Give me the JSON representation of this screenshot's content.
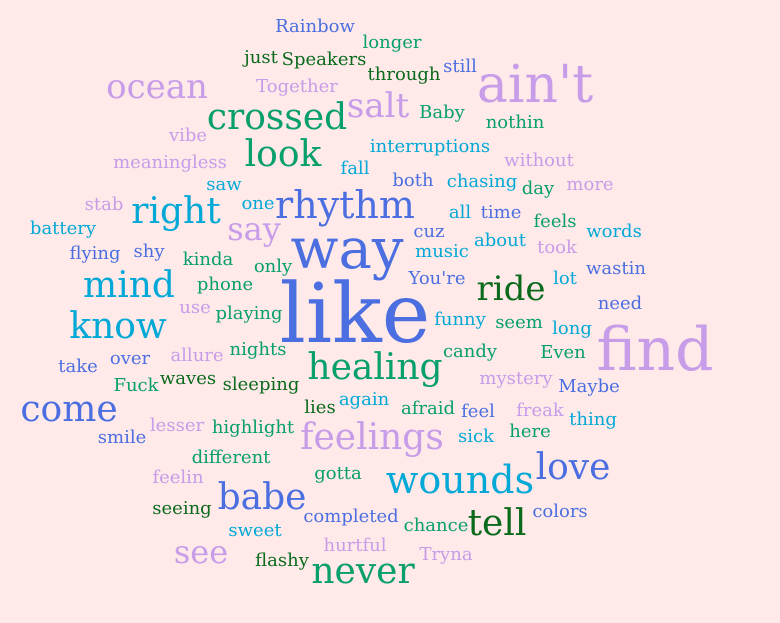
{
  "colors": {
    "background": "#ffe9e9",
    "palette": [
      "#4b6fe0",
      "#c79ce8",
      "#079f6c",
      "#03a9d6",
      "#0a6a1c"
    ]
  },
  "words": [
    {
      "text": "like",
      "color": "#4b6fe0"
    },
    {
      "text": "way",
      "color": "#4b6fe0"
    },
    {
      "text": "find",
      "color": "#c79ce8"
    },
    {
      "text": "ain't",
      "color": "#c79ce8"
    },
    {
      "text": "rhythm",
      "color": "#4b6fe0"
    },
    {
      "text": "crossed",
      "color": "#079f6c"
    },
    {
      "text": "look",
      "color": "#079f6c"
    },
    {
      "text": "healing",
      "color": "#079f6c"
    },
    {
      "text": "feelings",
      "color": "#c79ce8"
    },
    {
      "text": "wounds",
      "color": "#03a9d6"
    },
    {
      "text": "ocean",
      "color": "#c79ce8"
    },
    {
      "text": "right",
      "color": "#03a9d6"
    },
    {
      "text": "mind",
      "color": "#03a9d6"
    },
    {
      "text": "know",
      "color": "#03a9d6"
    },
    {
      "text": "come",
      "color": "#4b6fe0"
    },
    {
      "text": "babe",
      "color": "#4b6fe0"
    },
    {
      "text": "love",
      "color": "#4b6fe0"
    },
    {
      "text": "tell",
      "color": "#0a6a1c"
    },
    {
      "text": "never",
      "color": "#079f6c"
    },
    {
      "text": "see",
      "color": "#c79ce8"
    },
    {
      "text": "ride",
      "color": "#0a6a1c"
    },
    {
      "text": "say",
      "color": "#c79ce8"
    },
    {
      "text": "salt",
      "color": "#c79ce8"
    },
    {
      "text": "Rainbow",
      "color": "#4b6fe0"
    },
    {
      "text": "longer",
      "color": "#079f6c"
    },
    {
      "text": "just",
      "color": "#0a6a1c"
    },
    {
      "text": "Speakers",
      "color": "#0a6a1c"
    },
    {
      "text": "still",
      "color": "#4b6fe0"
    },
    {
      "text": "Together",
      "color": "#c79ce8"
    },
    {
      "text": "through",
      "color": "#0a6a1c"
    },
    {
      "text": "Baby",
      "color": "#079f6c"
    },
    {
      "text": "nothin",
      "color": "#079f6c"
    },
    {
      "text": "vibe",
      "color": "#c79ce8"
    },
    {
      "text": "interruptions",
      "color": "#03a9d6"
    },
    {
      "text": "meaningless",
      "color": "#c79ce8"
    },
    {
      "text": "fall",
      "color": "#03a9d6"
    },
    {
      "text": "without",
      "color": "#c79ce8"
    },
    {
      "text": "saw",
      "color": "#03a9d6"
    },
    {
      "text": "both",
      "color": "#4b6fe0"
    },
    {
      "text": "chasing",
      "color": "#03a9d6"
    },
    {
      "text": "day",
      "color": "#079f6c"
    },
    {
      "text": "more",
      "color": "#c79ce8"
    },
    {
      "text": "stab",
      "color": "#c79ce8"
    },
    {
      "text": "one",
      "color": "#03a9d6"
    },
    {
      "text": "battery",
      "color": "#03a9d6"
    },
    {
      "text": "all",
      "color": "#03a9d6"
    },
    {
      "text": "time",
      "color": "#4b6fe0"
    },
    {
      "text": "feels",
      "color": "#079f6c"
    },
    {
      "text": "words",
      "color": "#03a9d6"
    },
    {
      "text": "flying",
      "color": "#4b6fe0"
    },
    {
      "text": "shy",
      "color": "#4b6fe0"
    },
    {
      "text": "cuz",
      "color": "#4b6fe0"
    },
    {
      "text": "about",
      "color": "#03a9d6"
    },
    {
      "text": "took",
      "color": "#c79ce8"
    },
    {
      "text": "kinda",
      "color": "#079f6c"
    },
    {
      "text": "music",
      "color": "#03a9d6"
    },
    {
      "text": "only",
      "color": "#079f6c"
    },
    {
      "text": "You're",
      "color": "#4b6fe0"
    },
    {
      "text": "lot",
      "color": "#03a9d6"
    },
    {
      "text": "wastin",
      "color": "#4b6fe0"
    },
    {
      "text": "phone",
      "color": "#079f6c"
    },
    {
      "text": "use",
      "color": "#c79ce8"
    },
    {
      "text": "playing",
      "color": "#079f6c"
    },
    {
      "text": "need",
      "color": "#4b6fe0"
    },
    {
      "text": "funny",
      "color": "#03a9d6"
    },
    {
      "text": "seem",
      "color": "#079f6c"
    },
    {
      "text": "long",
      "color": "#03a9d6"
    },
    {
      "text": "take",
      "color": "#4b6fe0"
    },
    {
      "text": "over",
      "color": "#4b6fe0"
    },
    {
      "text": "allure",
      "color": "#c79ce8"
    },
    {
      "text": "nights",
      "color": "#079f6c"
    },
    {
      "text": "candy",
      "color": "#079f6c"
    },
    {
      "text": "Even",
      "color": "#079f6c"
    },
    {
      "text": "Fuck",
      "color": "#079f6c"
    },
    {
      "text": "waves",
      "color": "#0a6a1c"
    },
    {
      "text": "sleeping",
      "color": "#0a6a1c"
    },
    {
      "text": "mystery",
      "color": "#c79ce8"
    },
    {
      "text": "Maybe",
      "color": "#4b6fe0"
    },
    {
      "text": "again",
      "color": "#03a9d6"
    },
    {
      "text": "lies",
      "color": "#0a6a1c"
    },
    {
      "text": "afraid",
      "color": "#079f6c"
    },
    {
      "text": "feel",
      "color": "#4b6fe0"
    },
    {
      "text": "freak",
      "color": "#c79ce8"
    },
    {
      "text": "thing",
      "color": "#03a9d6"
    },
    {
      "text": "smile",
      "color": "#4b6fe0"
    },
    {
      "text": "lesser",
      "color": "#c79ce8"
    },
    {
      "text": "highlight",
      "color": "#079f6c"
    },
    {
      "text": "sick",
      "color": "#03a9d6"
    },
    {
      "text": "here",
      "color": "#079f6c"
    },
    {
      "text": "different",
      "color": "#079f6c"
    },
    {
      "text": "feelin",
      "color": "#c79ce8"
    },
    {
      "text": "gotta",
      "color": "#079f6c"
    },
    {
      "text": "seeing",
      "color": "#0a6a1c"
    },
    {
      "text": "completed",
      "color": "#4b6fe0"
    },
    {
      "text": "chance",
      "color": "#079f6c"
    },
    {
      "text": "colors",
      "color": "#4b6fe0"
    },
    {
      "text": "sweet",
      "color": "#03a9d6"
    },
    {
      "text": "hurtful",
      "color": "#c79ce8"
    },
    {
      "text": "Tryna",
      "color": "#c79ce8"
    },
    {
      "text": "flashy",
      "color": "#0a6a1c"
    }
  ]
}
